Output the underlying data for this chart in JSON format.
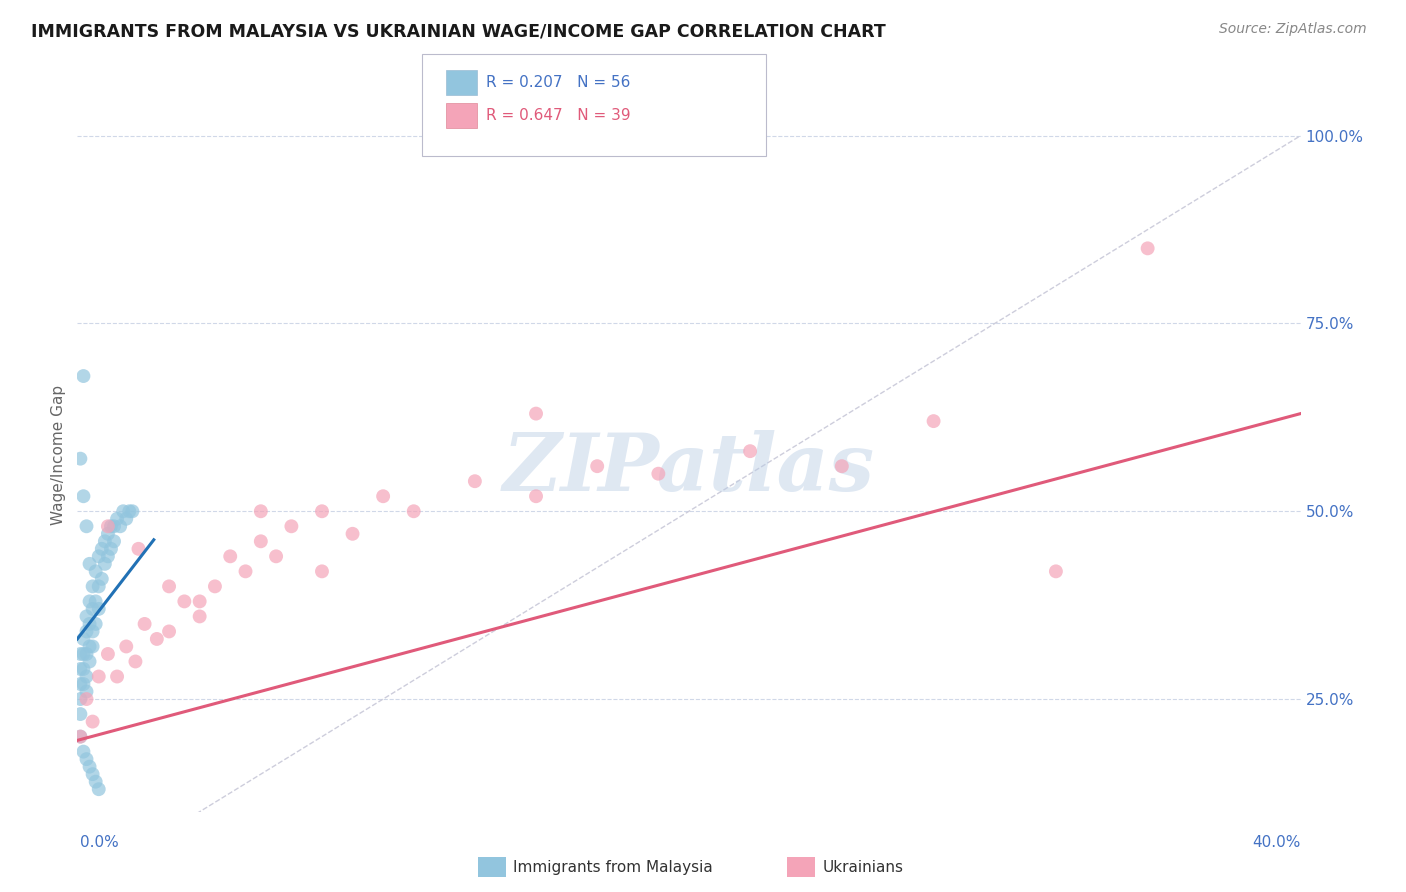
{
  "title": "IMMIGRANTS FROM MALAYSIA VS UKRAINIAN WAGE/INCOME GAP CORRELATION CHART",
  "source": "Source: ZipAtlas.com",
  "ylabel": "Wage/Income Gap",
  "ytick_vals": [
    0.25,
    0.5,
    0.75,
    1.0
  ],
  "ytick_labels": [
    "25.0%",
    "50.0%",
    "75.0%",
    "100.0%"
  ],
  "legend_label1": "Immigrants from Malaysia",
  "legend_label2": "Ukrainians",
  "r1": "0.207",
  "n1": "56",
  "r2": "0.647",
  "n2": "39",
  "blue_color": "#92c5de",
  "pink_color": "#f4a4b8",
  "blue_dark": "#2171b5",
  "pink_dark": "#e05a7a",
  "bg_color": "#ffffff",
  "grid_color": "#d0d8e8",
  "xlim": [
    0.0,
    0.4
  ],
  "ylim": [
    0.1,
    1.05
  ],
  "blue_scatter_x": [
    0.001,
    0.001,
    0.001,
    0.001,
    0.001,
    0.002,
    0.002,
    0.002,
    0.002,
    0.003,
    0.003,
    0.003,
    0.003,
    0.003,
    0.004,
    0.004,
    0.004,
    0.004,
    0.005,
    0.005,
    0.005,
    0.005,
    0.006,
    0.006,
    0.006,
    0.007,
    0.007,
    0.007,
    0.008,
    0.008,
    0.009,
    0.009,
    0.01,
    0.01,
    0.011,
    0.011,
    0.012,
    0.012,
    0.013,
    0.014,
    0.015,
    0.016,
    0.017,
    0.018,
    0.001,
    0.002,
    0.003,
    0.004,
    0.005,
    0.006,
    0.007,
    0.002,
    0.003,
    0.004,
    0.001,
    0.002
  ],
  "blue_scatter_y": [
    0.31,
    0.29,
    0.27,
    0.25,
    0.23,
    0.33,
    0.31,
    0.29,
    0.27,
    0.36,
    0.34,
    0.31,
    0.28,
    0.26,
    0.38,
    0.35,
    0.32,
    0.3,
    0.4,
    0.37,
    0.34,
    0.32,
    0.42,
    0.38,
    0.35,
    0.44,
    0.4,
    0.37,
    0.45,
    0.41,
    0.46,
    0.43,
    0.47,
    0.44,
    0.48,
    0.45,
    0.48,
    0.46,
    0.49,
    0.48,
    0.5,
    0.49,
    0.5,
    0.5,
    0.2,
    0.18,
    0.17,
    0.16,
    0.15,
    0.14,
    0.13,
    0.68,
    0.48,
    0.43,
    0.57,
    0.52
  ],
  "pink_scatter_x": [
    0.001,
    0.003,
    0.005,
    0.007,
    0.01,
    0.013,
    0.016,
    0.019,
    0.022,
    0.026,
    0.03,
    0.035,
    0.04,
    0.045,
    0.05,
    0.055,
    0.06,
    0.065,
    0.07,
    0.08,
    0.09,
    0.1,
    0.11,
    0.13,
    0.15,
    0.17,
    0.19,
    0.22,
    0.25,
    0.28,
    0.01,
    0.02,
    0.03,
    0.04,
    0.06,
    0.08,
    0.15,
    0.32,
    0.35
  ],
  "pink_scatter_y": [
    0.2,
    0.25,
    0.22,
    0.28,
    0.31,
    0.28,
    0.32,
    0.3,
    0.35,
    0.33,
    0.34,
    0.38,
    0.36,
    0.4,
    0.44,
    0.42,
    0.46,
    0.44,
    0.48,
    0.5,
    0.47,
    0.52,
    0.5,
    0.54,
    0.52,
    0.56,
    0.55,
    0.58,
    0.56,
    0.62,
    0.48,
    0.45,
    0.4,
    0.38,
    0.5,
    0.42,
    0.63,
    0.42,
    0.85
  ],
  "blue_trend_x": [
    0.0,
    0.025
  ],
  "blue_trend_y": [
    0.33,
    0.462
  ],
  "pink_trend_x": [
    0.0,
    0.4
  ],
  "pink_trend_y": [
    0.195,
    0.63
  ],
  "ref_line_x": [
    0.0,
    0.4
  ],
  "ref_line_y": [
    0.0,
    1.0
  ]
}
